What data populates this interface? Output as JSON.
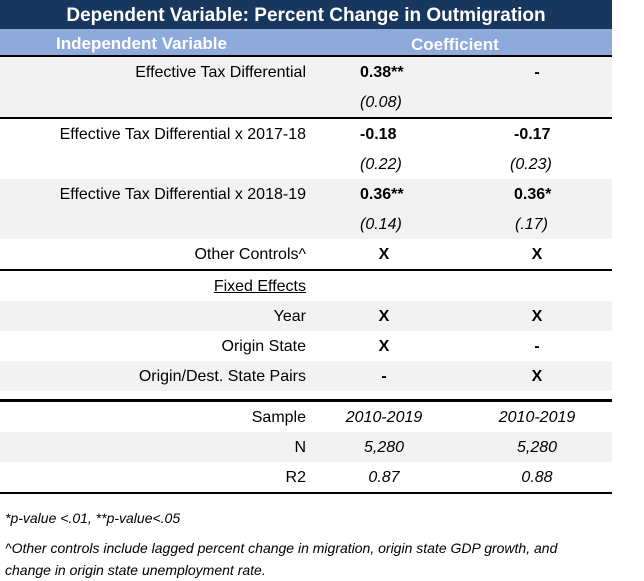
{
  "title": "Dependent Variable: Percent Change in Outmigration",
  "header": {
    "independent": "Independent Variable",
    "coefficient": "Coefficient"
  },
  "rows": {
    "etd": {
      "label": "Effective Tax Differential",
      "c1": "0.38**",
      "c2": "-",
      "se1": "(0.08)",
      "se2": ""
    },
    "etd1718": {
      "label": "Effective Tax Differential x 2017-18",
      "c1": "-0.18",
      "c2": "-0.17",
      "se1": "(0.22)",
      "se2": "(0.23)"
    },
    "etd1819": {
      "label": "Effective Tax Differential x 2018-19",
      "c1": "0.36**",
      "c2": "0.36*",
      "se1": "(0.14)",
      "se2": "(.17)"
    },
    "controls": {
      "label": "Other Controls^",
      "c1": "X",
      "c2": "X"
    }
  },
  "fixed_effects": {
    "heading": "Fixed Effects",
    "year": {
      "label": "Year",
      "c1": "X",
      "c2": "X"
    },
    "origin": {
      "label": "Origin State",
      "c1": "X",
      "c2": "-"
    },
    "pairs": {
      "label": "Origin/Dest. State Pairs",
      "c1": "-",
      "c2": "X"
    }
  },
  "stats": {
    "sample": {
      "label": "Sample",
      "c1": "2010-2019",
      "c2": "2010-2019"
    },
    "n": {
      "label": "N",
      "c1": "5,280",
      "c2": "5,280"
    },
    "r2": {
      "label": "R2",
      "c1": "0.87",
      "c2": "0.88"
    }
  },
  "notes": {
    "pvalue": "*p-value <.01, **p-value<.05",
    "controls": "^Other controls include lagged percent change in migration, origin state GDP growth, and change in origin state unemployment rate."
  }
}
